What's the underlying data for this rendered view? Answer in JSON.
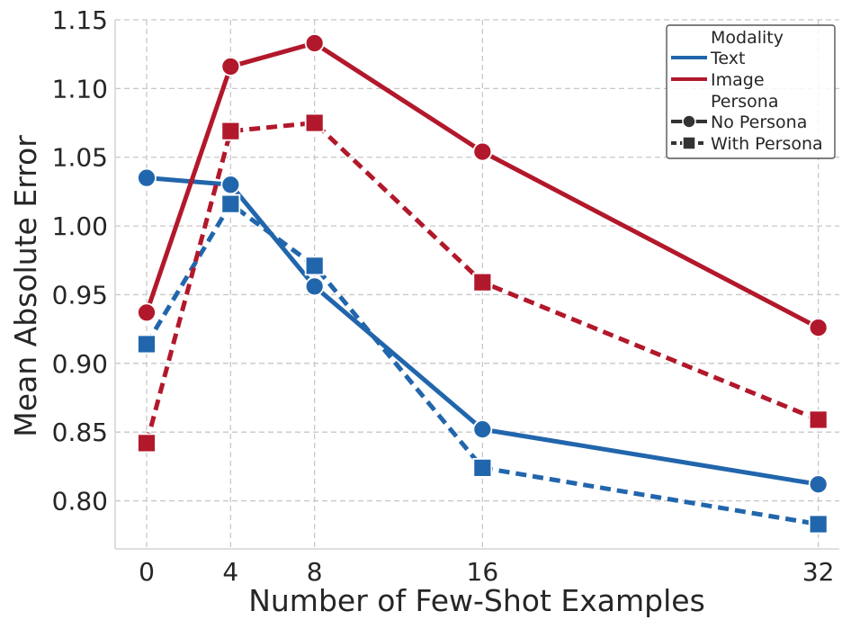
{
  "chart_data": {
    "type": "line",
    "title": "",
    "xlabel": "Number of Few-Shot Examples",
    "ylabel": "Mean Absolute Error",
    "x": [
      0,
      4,
      8,
      16,
      32
    ],
    "x_ticks": [
      "0",
      "4",
      "8",
      "16",
      "32"
    ],
    "xlim": [
      -1.5,
      33.0
    ],
    "ylim": [
      0.765,
      1.15
    ],
    "y_ticks": [
      "0.80",
      "0.85",
      "0.90",
      "0.95",
      "1.00",
      "1.05",
      "1.10",
      "1.15"
    ],
    "y_tick_values": [
      0.8,
      0.85,
      0.9,
      0.95,
      1.0,
      1.05,
      1.1,
      1.15
    ],
    "grid": true,
    "legend_position": "top-right",
    "series": [
      {
        "name": "Text / No Persona",
        "modality": "Text",
        "persona": "No Persona",
        "color": "#2166ac",
        "marker": "circle",
        "dash": "solid",
        "values": [
          1.035,
          1.03,
          0.956,
          0.852,
          0.812
        ]
      },
      {
        "name": "Text / With Persona",
        "modality": "Text",
        "persona": "With Persona",
        "color": "#2166ac",
        "marker": "square",
        "dash": "dashed",
        "values": [
          0.914,
          1.016,
          0.971,
          0.824,
          0.783
        ]
      },
      {
        "name": "Image / No Persona",
        "modality": "Image",
        "persona": "No Persona",
        "color": "#b2182b",
        "marker": "circle",
        "dash": "solid",
        "values": [
          0.937,
          1.116,
          1.133,
          1.054,
          0.926
        ]
      },
      {
        "name": "Image / With Persona",
        "modality": "Image",
        "persona": "With Persona",
        "color": "#b2182b",
        "marker": "square",
        "dash": "dashed",
        "values": [
          0.842,
          1.069,
          1.075,
          0.959,
          0.859
        ]
      }
    ],
    "legend": {
      "modality_title": "Modality",
      "modality_items": [
        {
          "label": "Text",
          "color": "#2166ac"
        },
        {
          "label": "Image",
          "color": "#b2182b"
        }
      ],
      "persona_title": "Persona",
      "persona_items": [
        {
          "label": "No Persona",
          "marker": "circle",
          "dash": "solid"
        },
        {
          "label": "With Persona",
          "marker": "square",
          "dash": "dashed"
        }
      ]
    }
  }
}
